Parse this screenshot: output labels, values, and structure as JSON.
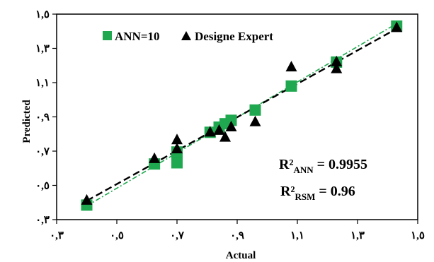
{
  "chart_data": {
    "type": "scatter",
    "xlabel": "Actual",
    "ylabel": "Predicted",
    "xlim": [
      0.3,
      1.5
    ],
    "ylim": [
      0.3,
      1.5
    ],
    "x_ticks": [
      {
        "value": 0.3,
        "label": "٠,٣"
      },
      {
        "value": 0.5,
        "label": "٠,٥"
      },
      {
        "value": 0.7,
        "label": "٠,٧"
      },
      {
        "value": 0.9,
        "label": "٠,٩"
      },
      {
        "value": 1.1,
        "label": "١,١"
      },
      {
        "value": 1.3,
        "label": "١,٣"
      },
      {
        "value": 1.5,
        "label": "١,٥"
      }
    ],
    "y_ticks": [
      {
        "value": 0.3,
        "label": "٠,٣"
      },
      {
        "value": 0.5,
        "label": "٠,٥"
      },
      {
        "value": 0.7,
        "label": "٠,٧"
      },
      {
        "value": 0.9,
        "label": "٠,٩"
      },
      {
        "value": 1.1,
        "label": "١,١"
      },
      {
        "value": 1.3,
        "label": "١,٣"
      },
      {
        "value": 1.5,
        "label": "١,٥"
      }
    ],
    "grid": false,
    "legend_position": "top-left",
    "series": [
      {
        "name": "ANN=10",
        "marker": "square",
        "color": "#1fa84f",
        "trendline_color": "#1fa84f",
        "trendline_style": "dash-dot",
        "points": [
          {
            "x": 0.4,
            "y": 0.385
          },
          {
            "x": 0.625,
            "y": 0.625
          },
          {
            "x": 0.7,
            "y": 0.632
          },
          {
            "x": 0.7,
            "y": 0.695
          },
          {
            "x": 0.81,
            "y": 0.81
          },
          {
            "x": 0.84,
            "y": 0.84
          },
          {
            "x": 0.86,
            "y": 0.86
          },
          {
            "x": 0.88,
            "y": 0.88
          },
          {
            "x": 0.96,
            "y": 0.94
          },
          {
            "x": 1.08,
            "y": 1.08
          },
          {
            "x": 1.23,
            "y": 1.22
          },
          {
            "x": 1.43,
            "y": 1.43
          }
        ]
      },
      {
        "name": "Designe Expert",
        "marker": "triangle",
        "color": "#000000",
        "trendline_color": "#000000",
        "trendline_style": "dashed",
        "points": [
          {
            "x": 0.4,
            "y": 0.412
          },
          {
            "x": 0.625,
            "y": 0.655
          },
          {
            "x": 0.7,
            "y": 0.712
          },
          {
            "x": 0.7,
            "y": 0.765
          },
          {
            "x": 0.81,
            "y": 0.81
          },
          {
            "x": 0.84,
            "y": 0.82
          },
          {
            "x": 0.86,
            "y": 0.78
          },
          {
            "x": 0.88,
            "y": 0.84
          },
          {
            "x": 0.96,
            "y": 0.87
          },
          {
            "x": 1.08,
            "y": 1.19
          },
          {
            "x": 1.23,
            "y": 1.22
          },
          {
            "x": 1.23,
            "y": 1.18
          },
          {
            "x": 1.43,
            "y": 1.42
          }
        ]
      }
    ],
    "trendlines": [
      {
        "series": "ANN=10",
        "from": [
          0.4,
          0.38
        ],
        "to": [
          1.43,
          1.445
        ]
      },
      {
        "series": "Designe Expert",
        "from": [
          0.4,
          0.41
        ],
        "to": [
          1.43,
          1.415
        ]
      }
    ],
    "annotations": {
      "r2_ann": {
        "prefix": "R²",
        "sub": "ANN",
        "value": " = 0.9955"
      },
      "r2_rsm": {
        "prefix": "R²",
        "sub": "RSM",
        "value": " = 0.96"
      }
    }
  }
}
